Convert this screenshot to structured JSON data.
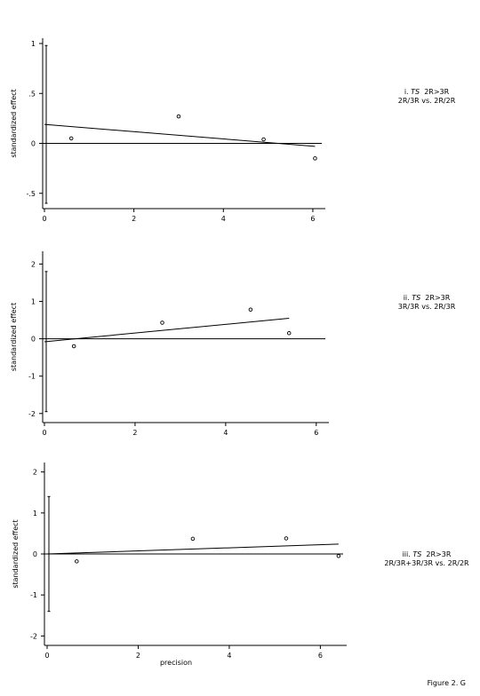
{
  "figure_caption": "Figure 2. G",
  "chart_data": [
    {
      "type": "scatter",
      "panel_label": {
        "roman": "i.",
        "gene": "TS",
        "contrast": "2R>3R",
        "comparison": "2R/3R vs. 2R/2R"
      },
      "xlabel": "",
      "ylabel": "standardized effect",
      "xlim": [
        0,
        6.2
      ],
      "ylim": [
        -0.6,
        1.0
      ],
      "xticks": [
        0,
        2,
        4,
        6
      ],
      "yticks": [
        1,
        0.5,
        0,
        -0.5
      ],
      "ytick_labels": [
        "1",
        ".5",
        "0",
        "-.5"
      ],
      "points": [
        {
          "x": 0.6,
          "y": 0.05
        },
        {
          "x": 3.0,
          "y": 0.27
        },
        {
          "x": 4.9,
          "y": 0.04
        },
        {
          "x": 6.05,
          "y": -0.15
        }
      ],
      "regression_line": {
        "x": [
          0,
          6.05
        ],
        "y": [
          0.19,
          -0.03
        ]
      },
      "confidence_interval_at_zero": [
        -0.6,
        0.98
      ],
      "reference_line_y": 0
    },
    {
      "type": "scatter",
      "panel_label": {
        "roman": "ii.",
        "gene": "TS",
        "contrast": "2R>3R",
        "comparison": "3R/3R vs. 2R/3R"
      },
      "xlabel": "",
      "ylabel": "standardized effect",
      "xlim": [
        0,
        6.2
      ],
      "ylim": [
        -2.1,
        2.2
      ],
      "xticks": [
        0,
        2,
        4,
        6
      ],
      "yticks": [
        2,
        1,
        0,
        -1,
        -2
      ],
      "ytick_labels": [
        "2",
        "1",
        "0",
        "-1",
        "-2"
      ],
      "points": [
        {
          "x": 0.65,
          "y": -0.2
        },
        {
          "x": 2.6,
          "y": 0.43
        },
        {
          "x": 4.55,
          "y": 0.78
        },
        {
          "x": 5.4,
          "y": 0.15
        }
      ],
      "regression_line": {
        "x": [
          0,
          5.4
        ],
        "y": [
          -0.08,
          0.55
        ]
      },
      "confidence_interval_at_zero": [
        -1.95,
        1.8
      ],
      "reference_line_y": 0
    },
    {
      "type": "scatter",
      "panel_label": {
        "roman": "iii.",
        "gene": "TS",
        "contrast": "2R>3R",
        "comparison": "2R/3R+3R/3R vs. 2R/2R"
      },
      "xlabel": "precision",
      "ylabel": "standardized effect",
      "xlim": [
        0,
        6.5
      ],
      "ylim": [
        -2.1,
        2.1
      ],
      "xticks": [
        0,
        2,
        4,
        6
      ],
      "yticks": [
        2,
        1,
        0,
        -1,
        -2
      ],
      "ytick_labels": [
        "2",
        "1",
        "0",
        "-1",
        "-2"
      ],
      "points": [
        {
          "x": 0.65,
          "y": -0.18
        },
        {
          "x": 3.2,
          "y": 0.37
        },
        {
          "x": 5.25,
          "y": 0.38
        },
        {
          "x": 6.4,
          "y": -0.05
        }
      ],
      "regression_line": {
        "x": [
          0,
          6.4
        ],
        "y": [
          0.0,
          0.24
        ]
      },
      "confidence_interval_at_zero": [
        -1.4,
        1.4
      ],
      "reference_line_y": 0
    }
  ]
}
